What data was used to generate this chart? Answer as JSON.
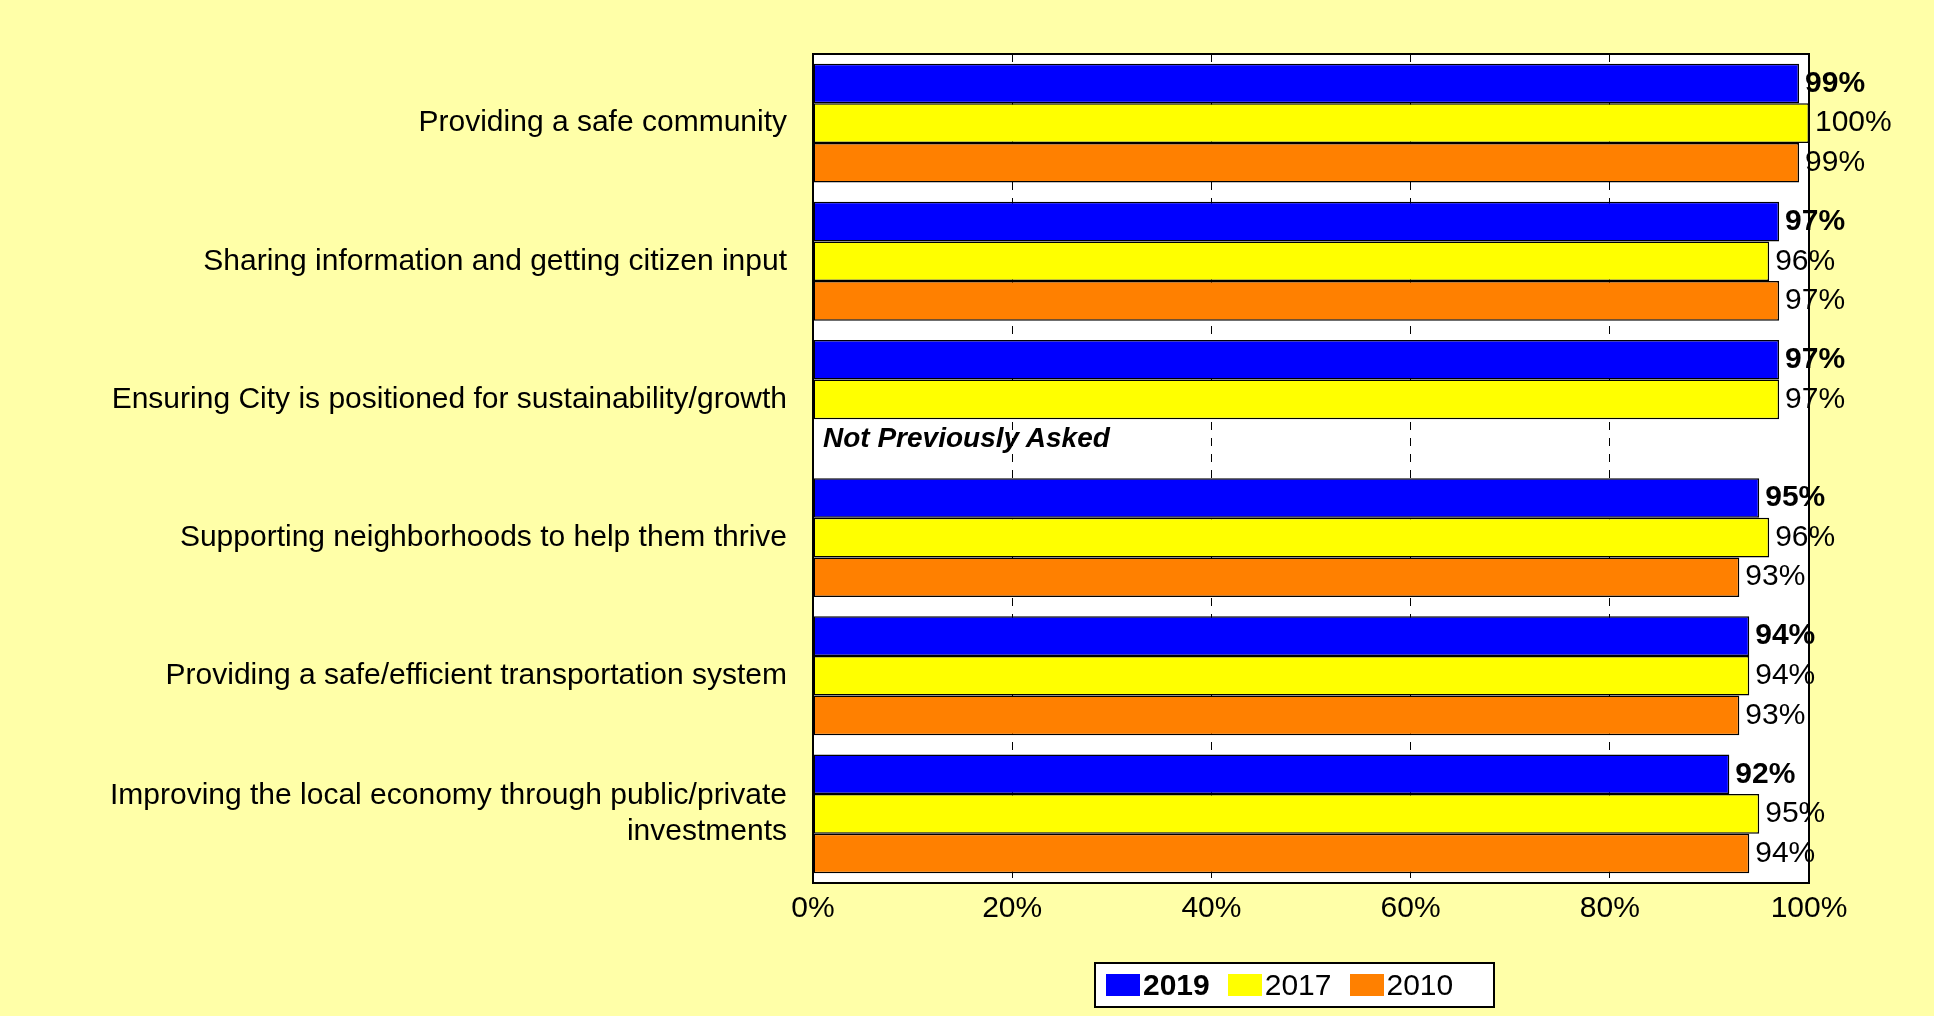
{
  "chart_data": {
    "type": "bar",
    "orientation": "horizontal",
    "categories": [
      "Providing a safe community",
      "Sharing information and getting citizen input",
      "Ensuring City is positioned for sustainability/growth",
      "Supporting neighborhoods to help them thrive",
      "Providing a safe/efficient transportation system",
      "Improving the local economy through public/private investments"
    ],
    "series": [
      {
        "name": "2019",
        "color": "#0000ff",
        "values": [
          99,
          97,
          97,
          95,
          94,
          92
        ],
        "value_labels": [
          "99%",
          "97%",
          "97%",
          "95%",
          "94%",
          "92%"
        ]
      },
      {
        "name": "2017",
        "color": "#ffff00",
        "values": [
          100,
          96,
          97,
          96,
          94,
          95
        ],
        "value_labels": [
          "100%",
          "96%",
          "97%",
          "96%",
          "94%",
          "95%"
        ]
      },
      {
        "name": "2010",
        "color": "#ff8000",
        "values": [
          99,
          97,
          null,
          93,
          93,
          94
        ],
        "value_labels": [
          "99%",
          "97%",
          null,
          "93%",
          "93%",
          "94%"
        ]
      }
    ],
    "xlim": [
      0,
      100
    ],
    "xticks": [
      {
        "value": 0,
        "label": "0%"
      },
      {
        "value": 20,
        "label": "20%"
      },
      {
        "value": 40,
        "label": "40%"
      },
      {
        "value": 60,
        "label": "60%"
      },
      {
        "value": 80,
        "label": "80%"
      },
      {
        "value": 100,
        "label": "100%"
      }
    ],
    "grid": "x",
    "legend": "bottom",
    "annotations": [
      "Not Previously Asked"
    ]
  }
}
